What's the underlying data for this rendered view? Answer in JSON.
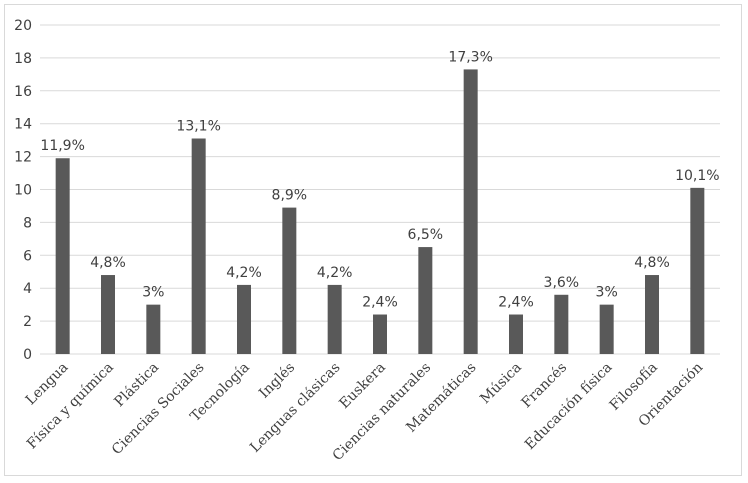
{
  "chart_data": {
    "type": "bar",
    "title": "",
    "xlabel": "",
    "ylabel": "",
    "ylim": [
      0,
      20
    ],
    "yticks": [
      0,
      2,
      4,
      6,
      8,
      10,
      12,
      14,
      16,
      18,
      20
    ],
    "grid": true,
    "legend": "none",
    "bar_color": "#595959",
    "grid_color": "#d9d9d9",
    "categories": [
      "Lengua",
      "Física y química",
      "Plástica",
      "Ciencias Sociales",
      "Tecnología",
      "Inglés",
      "Lenguas clásicas",
      "Euskera",
      "Ciencias naturales",
      "Matemáticas",
      "Música",
      "Francés",
      "Educación física",
      "Filosofía",
      "Orientación"
    ],
    "values": [
      11.9,
      4.8,
      3,
      13.1,
      4.2,
      8.9,
      4.2,
      2.4,
      6.5,
      17.3,
      2.4,
      3.6,
      3,
      4.8,
      10.1
    ],
    "data_labels": [
      "11,9%",
      "4,8%",
      "3%",
      "13,1%",
      "4,2%",
      "8,9%",
      "4,2%",
      "2,4%",
      "6,5%",
      "17,3%",
      "2,4%",
      "3,6%",
      "3%",
      "4,8%",
      "10,1%"
    ]
  }
}
